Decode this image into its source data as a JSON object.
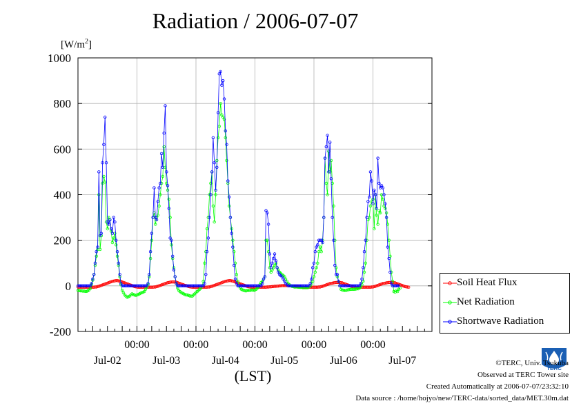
{
  "title": "Radiation / 2006-07-07",
  "unit": {
    "prefix": "[W/m",
    "exp": "2",
    "suffix": "]"
  },
  "chart_data": {
    "type": "line",
    "title": "Radiation / 2006-07-07",
    "xlabel": "(LST)",
    "ylabel": "[W/m2]",
    "ylim": [
      -200,
      1000
    ],
    "yticks": [
      -200,
      0,
      200,
      400,
      600,
      800,
      1000
    ],
    "ytick_labels": [
      "-200",
      "0",
      "200",
      "400",
      "600",
      "800",
      "1000"
    ],
    "xlim_hours": [
      0,
      144
    ],
    "xticks": [
      {
        "hour": 24,
        "time": "00:00",
        "date": "Jul-02"
      },
      {
        "hour": 48,
        "time": "00:00",
        "date": "Jul-03"
      },
      {
        "hour": 72,
        "time": "00:00",
        "date": "Jul-04"
      },
      {
        "hour": 96,
        "time": "00:00",
        "date": "Jul-05"
      },
      {
        "hour": 120,
        "time": "00:00",
        "date": "Jul-06"
      }
    ],
    "last_date_label": {
      "hour": 132,
      "date": "Jul-07"
    },
    "grid": true,
    "legend_position": "right",
    "step_hours": 0.5,
    "series": [
      {
        "name": "Soil Heat Flux",
        "color": "#ff0000",
        "values": [
          -5,
          -6,
          -6,
          -6,
          -6,
          -6,
          -6,
          -6,
          -6,
          -6,
          -6,
          -6,
          -6,
          -6,
          -5,
          -5,
          -3,
          -2,
          0,
          2,
          4,
          6,
          8,
          10,
          12,
          14,
          16,
          18,
          20,
          21,
          22,
          23,
          23,
          22,
          21,
          19,
          17,
          15,
          13,
          11,
          9,
          7,
          5,
          3,
          1,
          -1,
          -3,
          -4,
          -5,
          -6,
          -6,
          -6,
          -6,
          -6,
          -6,
          -6,
          -6,
          -6,
          -6,
          -6,
          -6,
          -6,
          -5,
          -5,
          -3,
          -2,
          0,
          2,
          4,
          6,
          8,
          10,
          12,
          14,
          15,
          16,
          17,
          17,
          17,
          17,
          16,
          14,
          12,
          10,
          8,
          6,
          4,
          2,
          1,
          -1,
          -3,
          -4,
          -5,
          -6,
          -6,
          -6,
          -6,
          -6,
          -6,
          -6,
          -6,
          -6,
          -6,
          -6,
          -6,
          -6,
          -5,
          -5,
          -3,
          -2,
          0,
          2,
          4,
          6,
          8,
          10,
          12,
          14,
          16,
          18,
          20,
          21,
          22,
          23,
          23,
          22,
          21,
          19,
          17,
          15,
          13,
          11,
          9,
          7,
          5,
          3,
          1,
          -1,
          -3,
          -4,
          -5,
          -6,
          -6,
          -6,
          -6,
          -6,
          -6,
          -6,
          -6,
          -6,
          -6,
          -6,
          -6,
          -6,
          -5,
          -5,
          -4,
          -4,
          -3,
          -3,
          -2,
          -2,
          -1,
          -1,
          0,
          0,
          1,
          1,
          1,
          1,
          1,
          1,
          0,
          0,
          -1,
          -1,
          -2,
          -2,
          -3,
          -3,
          -4,
          -4,
          -5,
          -6,
          -6,
          -6,
          -6,
          -6,
          -6,
          -6,
          -6,
          -6,
          -6,
          -6,
          -6,
          -6,
          -5,
          -5,
          -3,
          -2,
          0,
          2,
          4,
          6,
          8,
          10,
          11,
          12,
          13,
          14,
          15,
          15,
          15,
          15,
          14,
          13,
          11,
          9,
          7,
          5,
          3,
          1,
          -1,
          -3,
          -4,
          -5,
          -6,
          -6,
          -6,
          -6,
          -6,
          -6,
          -6,
          -6,
          -6,
          -6,
          -6,
          -6,
          -6,
          -5,
          -5,
          -3,
          -2,
          0,
          2,
          4,
          6,
          8,
          10,
          11,
          12,
          13,
          14,
          15,
          15,
          15,
          15,
          14,
          13,
          11,
          9,
          7,
          5,
          3,
          1,
          -1,
          -3,
          -4,
          -5,
          -6
        ]
      },
      {
        "name": "Net Radiation",
        "color": "#00ff00",
        "values": [
          -20,
          -21,
          -22,
          -22,
          -23,
          -23,
          -24,
          -24,
          -22,
          -18,
          -12,
          5,
          25,
          50,
          90,
          130,
          160,
          400,
          160,
          220,
          450,
          480,
          455,
          280,
          250,
          300,
          290,
          240,
          190,
          210,
          230,
          180,
          130,
          90,
          40,
          5,
          -20,
          -30,
          -40,
          -45,
          -50,
          -48,
          -45,
          -40,
          -35,
          -38,
          -40,
          -42,
          -40,
          -38,
          -35,
          -32,
          -30,
          -28,
          -25,
          -15,
          -5,
          5,
          40,
          120,
          200,
          300,
          320,
          270,
          300,
          310,
          350,
          400,
          450,
          480,
          610,
          520,
          450,
          420,
          380,
          300,
          180,
          120,
          80,
          40,
          10,
          -10,
          -20,
          -25,
          -30,
          -32,
          -35,
          -38,
          -40,
          -40,
          -42,
          -44,
          -45,
          -45,
          -40,
          -35,
          -30,
          -25,
          -20,
          -15,
          -10,
          0,
          20,
          100,
          150,
          250,
          300,
          400,
          450,
          500,
          350,
          280,
          400,
          550,
          650,
          700,
          800,
          750,
          740,
          730,
          650,
          550,
          450,
          350,
          300,
          250,
          200,
          150,
          100,
          50,
          20,
          0,
          -10,
          -15,
          -18,
          -20,
          -22,
          -22,
          -20,
          -20,
          -20,
          -18,
          -18,
          -20,
          -18,
          -15,
          -10,
          -5,
          5,
          15,
          20,
          30,
          40,
          200,
          200,
          150,
          80,
          60,
          70,
          80,
          90,
          100,
          80,
          70,
          60,
          55,
          50,
          45,
          40,
          30,
          20,
          10,
          5,
          0,
          -2,
          -3,
          -5,
          -5,
          -5,
          -6,
          -6,
          -7,
          -7,
          -8,
          -8,
          -8,
          -8,
          -8,
          -5,
          0,
          10,
          20,
          40,
          60,
          80,
          100,
          150,
          170,
          150,
          200,
          300,
          560,
          450,
          400,
          590,
          500,
          550,
          450,
          350,
          200,
          80,
          40,
          20,
          0,
          -15,
          -18,
          -19,
          -20,
          -20,
          -18,
          -17,
          -16,
          -15,
          -15,
          -15,
          -15,
          -14,
          -13,
          -13,
          -10,
          -5,
          5,
          20,
          60,
          100,
          200,
          290,
          300,
          350,
          370,
          380,
          250,
          400,
          310,
          270,
          330,
          320,
          400,
          380,
          350,
          340,
          320,
          270,
          200,
          130,
          60,
          20,
          -25,
          -28,
          -20,
          -25,
          -15,
          -10
        ]
      },
      {
        "name": "Shortwave Radiation",
        "color": "#0000ff",
        "values": [
          0,
          0,
          0,
          0,
          0,
          0,
          0,
          0,
          0,
          0,
          0,
          10,
          30,
          50,
          100,
          150,
          170,
          500,
          220,
          230,
          540,
          620,
          740,
          540,
          280,
          270,
          290,
          250,
          230,
          300,
          280,
          200,
          150,
          100,
          50,
          10,
          0,
          0,
          0,
          0,
          0,
          0,
          0,
          0,
          0,
          0,
          0,
          0,
          0,
          0,
          0,
          0,
          0,
          0,
          0,
          0,
          0,
          10,
          50,
          150,
          230,
          300,
          430,
          300,
          290,
          370,
          430,
          450,
          580,
          520,
          670,
          790,
          500,
          440,
          340,
          210,
          200,
          130,
          70,
          40,
          10,
          0,
          0,
          0,
          0,
          0,
          0,
          0,
          0,
          0,
          0,
          0,
          0,
          0,
          0,
          0,
          0,
          0,
          0,
          0,
          0,
          0,
          0,
          10,
          50,
          150,
          210,
          300,
          400,
          500,
          650,
          540,
          420,
          520,
          760,
          930,
          940,
          880,
          900,
          820,
          680,
          620,
          460,
          390,
          300,
          230,
          170,
          90,
          30,
          10,
          0,
          0,
          0,
          0,
          0,
          0,
          0,
          0,
          0,
          0,
          0,
          0,
          0,
          0,
          0,
          0,
          0,
          0,
          0,
          0,
          10,
          30,
          40,
          330,
          320,
          270,
          140,
          80,
          100,
          120,
          140,
          110,
          80,
          60,
          50,
          45,
          40,
          30,
          20,
          10,
          5,
          0,
          0,
          0,
          0,
          0,
          0,
          0,
          0,
          0,
          0,
          0,
          0,
          0,
          0,
          0,
          0,
          0,
          0,
          10,
          30,
          80,
          100,
          150,
          170,
          180,
          200,
          200,
          200,
          190,
          300,
          560,
          610,
          660,
          500,
          630,
          470,
          300,
          200,
          90,
          50,
          50,
          20,
          0,
          0,
          0,
          0,
          0,
          0,
          0,
          0,
          0,
          0,
          0,
          0,
          0,
          0,
          0,
          0,
          0,
          10,
          30,
          80,
          150,
          200,
          300,
          370,
          390,
          500,
          460,
          360,
          420,
          400,
          340,
          560,
          450,
          430,
          440,
          430,
          400,
          360,
          300,
          170,
          120,
          60,
          10,
          0,
          0,
          0,
          0,
          0,
          0
        ]
      }
    ]
  },
  "footer": {
    "copyright": "©TERC, Univ. Tsukuba",
    "observed": "Observed at TERC Tower site",
    "created": "Created Automatically at 2006-07-07/23:32:10",
    "source": "Data source : /home/hojyo/new/TERC-data/sorted_data/MET.30m.dat"
  },
  "logo": {
    "name": "terc-logo",
    "text": "TERC",
    "color": "#1a5fb4"
  }
}
